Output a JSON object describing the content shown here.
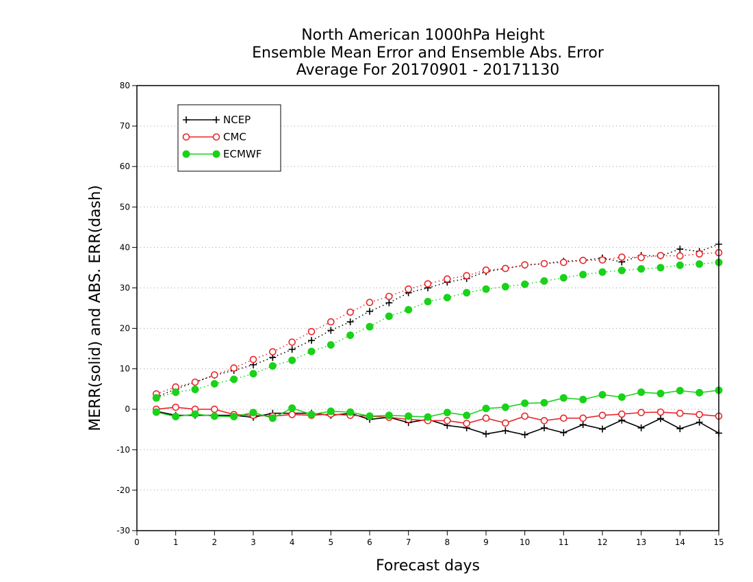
{
  "chart_data": {
    "type": "line",
    "title": [
      "North American 1000hPa Height",
      "Ensemble Mean Error and Ensemble Abs. Error",
      "Average For 20170901 - 20171130"
    ],
    "xlabel": "Forecast days",
    "ylabel": "MERR(solid) and ABS. ERR(dash)",
    "xlim": [
      0,
      15
    ],
    "ylim": [
      -30,
      80
    ],
    "xticks": [
      0,
      1,
      2,
      3,
      4,
      5,
      6,
      7,
      8,
      9,
      10,
      11,
      12,
      13,
      14,
      15
    ],
    "yticks": [
      -30,
      -20,
      -10,
      0,
      10,
      20,
      30,
      40,
      50,
      60,
      70,
      80
    ],
    "grid": "horizontal dotted",
    "legend_position": "top-left",
    "x": [
      0.5,
      1,
      1.5,
      2,
      2.5,
      3,
      3.5,
      4,
      4.5,
      5,
      5.5,
      6,
      6.5,
      7,
      7.5,
      8,
      8.5,
      9,
      9.5,
      10,
      10.5,
      11,
      11.5,
      12,
      12.5,
      13,
      13.5,
      14,
      14.5,
      15
    ],
    "series": [
      {
        "name": "NCEP",
        "color": "#000000",
        "marker": "plus",
        "merr": [
          -0.5,
          -1.5,
          -1.5,
          -1.5,
          -1.5,
          -2.0,
          -1.0,
          -1.0,
          -1.0,
          -1.5,
          -1.0,
          -2.5,
          -2.0,
          -3.3,
          -2.5,
          -4.0,
          -4.6,
          -6.1,
          -5.3,
          -6.3,
          -4.6,
          -5.8,
          -3.8,
          -4.9,
          -2.7,
          -4.6,
          -2.3,
          -4.8,
          -3.2,
          -5.9
        ],
        "abs_err": [
          3.0,
          5.0,
          6.7,
          8.4,
          9.6,
          11.0,
          12.8,
          14.8,
          17.0,
          19.5,
          21.6,
          24.2,
          26.3,
          28.8,
          30.0,
          31.4,
          32.3,
          34.0,
          34.8,
          35.6,
          36.0,
          36.6,
          36.8,
          37.4,
          36.4,
          38.0,
          37.9,
          39.6,
          39.0,
          40.8
        ]
      },
      {
        "name": "CMC",
        "color": "#e8262a",
        "marker": "open-circle",
        "merr": [
          0.0,
          0.5,
          0.0,
          0.0,
          -1.3,
          -1.5,
          -1.7,
          -1.3,
          -1.5,
          -1.2,
          -1.5,
          -1.7,
          -2.0,
          -2.5,
          -2.8,
          -2.8,
          -3.5,
          -2.2,
          -3.4,
          -1.7,
          -2.8,
          -2.2,
          -2.2,
          -1.5,
          -1.2,
          -0.8,
          -0.7,
          -1.0,
          -1.3,
          -1.7
        ],
        "abs_err": [
          3.8,
          5.5,
          6.7,
          8.5,
          10.2,
          12.3,
          14.2,
          16.6,
          19.2,
          21.6,
          24.0,
          26.4,
          27.9,
          29.7,
          31.0,
          32.2,
          33.0,
          34.4,
          34.8,
          35.7,
          36.0,
          36.3,
          36.8,
          36.9,
          37.6,
          37.5,
          38.0,
          37.9,
          38.4,
          38.7
        ]
      },
      {
        "name": "ECMWF",
        "color": "#19d219",
        "marker": "filled-circle",
        "merr": [
          -0.7,
          -1.8,
          -1.2,
          -1.7,
          -1.8,
          -0.8,
          -2.2,
          0.3,
          -1.3,
          -0.5,
          -0.7,
          -1.7,
          -1.5,
          -1.7,
          -1.9,
          -0.8,
          -1.5,
          0.2,
          0.5,
          1.5,
          1.6,
          2.8,
          2.4,
          3.6,
          3.0,
          4.2,
          3.9,
          4.6,
          4.1,
          4.7
        ],
        "abs_err": [
          2.8,
          4.2,
          4.9,
          6.3,
          7.4,
          8.8,
          10.7,
          12.1,
          14.3,
          15.9,
          18.3,
          20.4,
          23.0,
          24.6,
          26.6,
          27.6,
          28.8,
          29.7,
          30.3,
          30.9,
          31.7,
          32.5,
          33.3,
          33.9,
          34.3,
          34.7,
          35.0,
          35.6,
          35.9,
          36.3
        ]
      }
    ]
  }
}
